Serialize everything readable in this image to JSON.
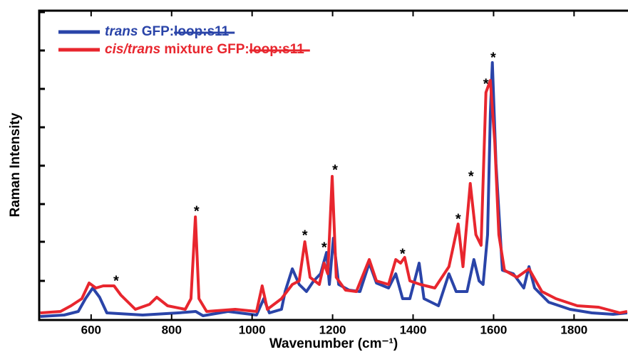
{
  "chart_data": {
    "type": "line",
    "x_label": "Wavenumber (cm⁻¹)",
    "y_label": "Raman Intensity",
    "xlim": [
      471,
      1934
    ],
    "xticks": [
      600,
      800,
      1000,
      1200,
      1400,
      1600,
      1800
    ],
    "ylim": [
      0,
      435
    ],
    "yticks": [
      55,
      110,
      163,
      217,
      271,
      325,
      379,
      433
    ],
    "legend": "upper left",
    "series": [
      {
        "name": "trans GFP:loop:s11",
        "color": "#2a44a8",
        "x": [
          474,
          533,
          568,
          586,
          604,
          621,
          639,
          728,
          816,
          860,
          878,
          940,
          1011,
          1029,
          1043,
          1073,
          1082,
          1100,
          1117,
          1135,
          1153,
          1170,
          1185,
          1192,
          1202,
          1215,
          1241,
          1268,
          1291,
          1309,
          1339,
          1357,
          1374,
          1392,
          1415,
          1427,
          1463,
          1489,
          1507,
          1534,
          1551,
          1564,
          1574,
          1585,
          1592,
          1597,
          1606,
          1622,
          1649,
          1675,
          1688,
          1702,
          1737,
          1790,
          1844,
          1897,
          1932
        ],
        "values": [
          5,
          7,
          12,
          30,
          45,
          32,
          10,
          7,
          10,
          12,
          6,
          12,
          7,
          30,
          10,
          15,
          40,
          72,
          50,
          40,
          55,
          65,
          95,
          50,
          115,
          50,
          42,
          40,
          80,
          52,
          45,
          65,
          30,
          30,
          80,
          30,
          20,
          65,
          40,
          40,
          85,
          55,
          50,
          120,
          290,
          362,
          220,
          70,
          65,
          45,
          75,
          45,
          25,
          15,
          10,
          8,
          10
        ]
      },
      {
        "name": "cis/trans mixture GFP:loop:s11",
        "color": "#e8262e",
        "x": [
          474,
          524,
          550,
          577,
          595,
          612,
          630,
          657,
          674,
          710,
          745,
          763,
          790,
          834,
          848,
          859,
          868,
          887,
          958,
          1011,
          1025,
          1038,
          1073,
          1100,
          1117,
          1131,
          1144,
          1167,
          1179,
          1188,
          1199,
          1209,
          1232,
          1259,
          1291,
          1309,
          1339,
          1357,
          1369,
          1379,
          1392,
          1418,
          1454,
          1489,
          1512,
          1524,
          1542,
          1556,
          1569,
          1581,
          1592,
          1603,
          1613,
          1627,
          1658,
          1688,
          1720,
          1755,
          1808,
          1861,
          1914,
          1932
        ],
        "values": [
          10,
          12,
          20,
          30,
          52,
          45,
          48,
          48,
          35,
          15,
          22,
          32,
          20,
          15,
          30,
          145,
          30,
          12,
          15,
          12,
          48,
          15,
          30,
          50,
          55,
          110,
          60,
          50,
          80,
          65,
          202,
          60,
          42,
          40,
          85,
          55,
          50,
          85,
          80,
          88,
          55,
          50,
          45,
          75,
          135,
          75,
          192,
          120,
          105,
          320,
          337,
          250,
          120,
          70,
          60,
          72,
          40,
          30,
          20,
          18,
          10,
          12
        ]
      }
    ],
    "annotations": [
      {
        "text": "*",
        "x": 662,
        "y": 58
      },
      {
        "text": "*",
        "x": 862,
        "y": 156
      },
      {
        "text": "*",
        "x": 1131,
        "y": 122
      },
      {
        "text": "*",
        "x": 1179,
        "y": 105
      },
      {
        "text": "*",
        "x": 1206,
        "y": 214
      },
      {
        "text": "*",
        "x": 1374,
        "y": 96
      },
      {
        "text": "*",
        "x": 1512,
        "y": 145
      },
      {
        "text": "*",
        "x": 1544,
        "y": 205
      },
      {
        "text": "*",
        "x": 1581,
        "y": 335
      },
      {
        "text": "*",
        "x": 1599,
        "y": 372
      }
    ]
  }
}
